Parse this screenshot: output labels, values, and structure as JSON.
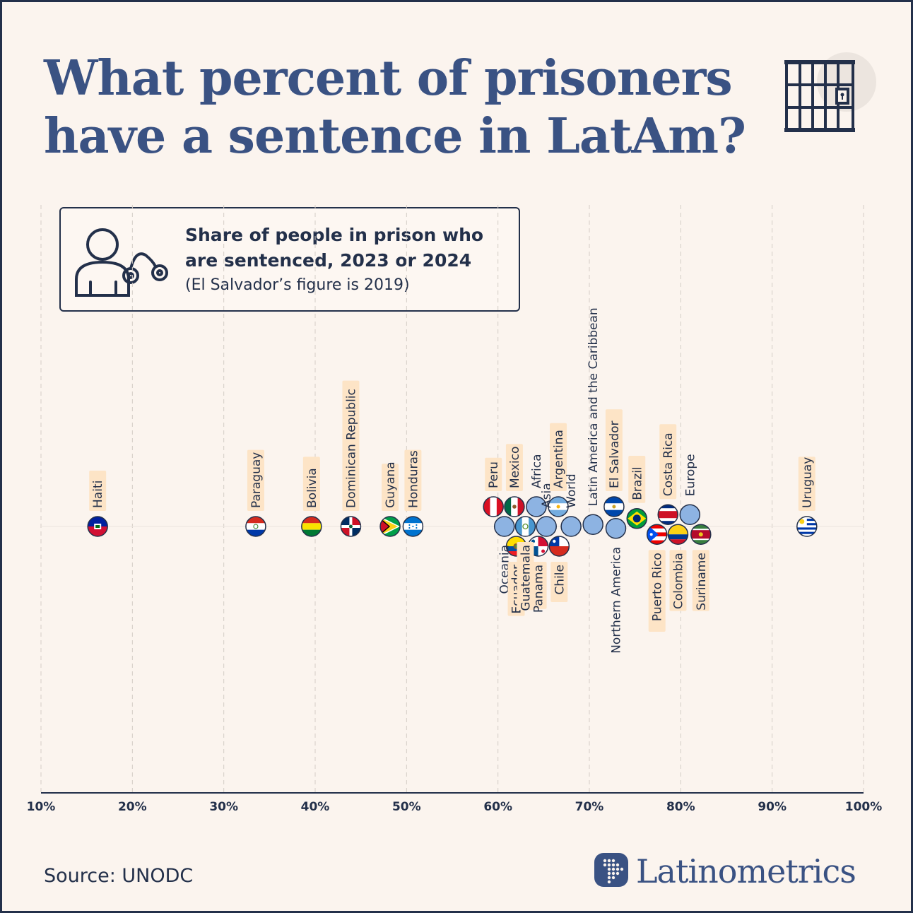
{
  "title_line1": "What percent of prisoners",
  "title_line2": "have a sentence in LatAm?",
  "legend": {
    "title_line1": "Share of people in prison who",
    "title_line2": "are sentenced, 2023 or 2024",
    "note": "(El Salvador’s figure is 2019)"
  },
  "source": "Source: UNODC",
  "brand": "Latinometrics",
  "icons": [
    "jail-cell-icon",
    "prisoner-handcuffs-icon",
    "latinometrics-logo-icon"
  ],
  "colors": {
    "background": "#fbf4ee",
    "title": "#3a5283",
    "text": "#23304a",
    "region_dot": "#8db3e2",
    "label_bg": "#fde4c6",
    "grid": "#d4cdc6"
  },
  "chart_data": {
    "type": "scatter",
    "title": "Share of people in prison who are sentenced, 2023 or 2024",
    "xlabel": "",
    "ylabel": "",
    "xlim": [
      10,
      100
    ],
    "x_ticks": [
      "10%",
      "20%",
      "30%",
      "40%",
      "50%",
      "60%",
      "70%",
      "80%",
      "90%",
      "100%"
    ],
    "grid": "vertical dashed",
    "points": [
      {
        "name": "Haiti",
        "value": 16.2,
        "kind": "country",
        "flag": "ht",
        "row": 0
      },
      {
        "name": "Paraguay",
        "value": 33.5,
        "kind": "country",
        "flag": "py",
        "row": 0
      },
      {
        "name": "Bolivia",
        "value": 39.6,
        "kind": "country",
        "flag": "bo",
        "row": 0
      },
      {
        "name": "Dominican Republic",
        "value": 43.9,
        "kind": "country",
        "flag": "do",
        "row": 0
      },
      {
        "name": "Guyana",
        "value": 48.2,
        "kind": "country",
        "flag": "gy",
        "row": 0
      },
      {
        "name": "Honduras",
        "value": 50.7,
        "kind": "country",
        "flag": "hn",
        "row": 0
      },
      {
        "name": "Peru",
        "value": 59.5,
        "kind": "country",
        "flag": "pe",
        "row": -1
      },
      {
        "name": "Oceania",
        "value": 60.7,
        "kind": "region",
        "row": 0
      },
      {
        "name": "Mexico",
        "value": 61.8,
        "kind": "country",
        "flag": "mx",
        "row": -1
      },
      {
        "name": "Ecuador",
        "value": 62.0,
        "kind": "country",
        "flag": "ec",
        "row": 1
      },
      {
        "name": "Guatemala",
        "value": 63.0,
        "kind": "country",
        "flag": "gt",
        "row": 0
      },
      {
        "name": "Africa",
        "value": 64.2,
        "kind": "region",
        "row": -1
      },
      {
        "name": "Panama",
        "value": 64.4,
        "kind": "country",
        "flag": "pa",
        "row": 1
      },
      {
        "name": "Asia",
        "value": 65.3,
        "kind": "region",
        "row": 0
      },
      {
        "name": "Argentina",
        "value": 66.6,
        "kind": "country",
        "flag": "ar",
        "row": -1
      },
      {
        "name": "Chile",
        "value": 66.7,
        "kind": "country",
        "flag": "cl",
        "row": 1
      },
      {
        "name": "World",
        "value": 68.0,
        "kind": "region",
        "row": 0
      },
      {
        "name": "Latin America and the Caribbean",
        "value": 70.4,
        "kind": "region",
        "row": -0.1
      },
      {
        "name": "El Salvador",
        "value": 72.7,
        "kind": "country",
        "flag": "sv",
        "row": -1
      },
      {
        "name": "Northern America",
        "value": 72.9,
        "kind": "region",
        "row": 0.1
      },
      {
        "name": "Brazil",
        "value": 75.2,
        "kind": "country",
        "flag": "br",
        "row": -0.4
      },
      {
        "name": "Puerto Rico",
        "value": 77.4,
        "kind": "country",
        "flag": "pr",
        "row": 0.4
      },
      {
        "name": "Costa Rica",
        "value": 78.6,
        "kind": "country",
        "flag": "cr",
        "row": -0.6
      },
      {
        "name": "Colombia",
        "value": 79.7,
        "kind": "country",
        "flag": "co",
        "row": 0.4
      },
      {
        "name": "Europe",
        "value": 81.0,
        "kind": "region",
        "row": -0.6
      },
      {
        "name": "Suriname",
        "value": 82.2,
        "kind": "country",
        "flag": "sr",
        "row": 0.4
      },
      {
        "name": "Uruguay",
        "value": 93.8,
        "kind": "country",
        "flag": "uy",
        "row": 0
      }
    ]
  }
}
